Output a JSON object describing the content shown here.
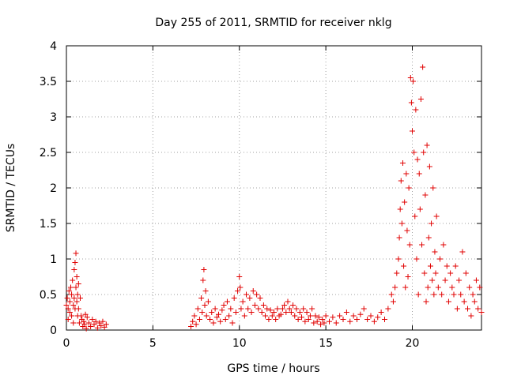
{
  "chart_data": {
    "type": "scatter",
    "title": "Day 255 of 2011, SRMTID for receiver nklg",
    "xlabel": "GPS time / hours",
    "ylabel": "SRMTID / TECUs",
    "xlim": [
      0,
      24
    ],
    "ylim": [
      0,
      4
    ],
    "x_ticks": [
      0,
      5,
      10,
      15,
      20
    ],
    "x_tick_labels": [
      "0",
      "5",
      "10",
      "15",
      "20"
    ],
    "y_ticks": [
      0,
      0.5,
      1,
      1.5,
      2,
      2.5,
      3,
      3.5,
      4
    ],
    "y_tick_labels": [
      "0",
      "0.5",
      "1",
      "1.5",
      "2",
      "2.5",
      "3",
      "3.5",
      "4"
    ],
    "grid": true,
    "marker": "+",
    "color": "#e00000",
    "series": [
      {
        "name": "SRMTID",
        "points": [
          [
            0.0,
            0.35
          ],
          [
            0.05,
            0.45
          ],
          [
            0.1,
            0.3
          ],
          [
            0.1,
            0.15
          ],
          [
            0.15,
            0.55
          ],
          [
            0.2,
            0.25
          ],
          [
            0.2,
            0.4
          ],
          [
            0.25,
            0.6
          ],
          [
            0.3,
            0.2
          ],
          [
            0.3,
            0.5
          ],
          [
            0.35,
            0.7
          ],
          [
            0.4,
            0.35
          ],
          [
            0.4,
            0.1
          ],
          [
            0.45,
            0.85
          ],
          [
            0.45,
            0.45
          ],
          [
            0.5,
            0.95
          ],
          [
            0.5,
            0.3
          ],
          [
            0.55,
            1.08
          ],
          [
            0.55,
            0.6
          ],
          [
            0.6,
            0.4
          ],
          [
            0.6,
            0.75
          ],
          [
            0.65,
            0.2
          ],
          [
            0.65,
            0.5
          ],
          [
            0.7,
            0.3
          ],
          [
            0.7,
            0.65
          ],
          [
            0.75,
            0.1
          ],
          [
            0.8,
            0.45
          ],
          [
            0.85,
            0.2
          ],
          [
            0.9,
            0.15
          ],
          [
            0.95,
            0.05
          ],
          [
            1.0,
            0.12
          ],
          [
            1.05,
            0.08
          ],
          [
            1.1,
            0.22
          ],
          [
            1.15,
            0.02
          ],
          [
            1.2,
            0.18
          ],
          [
            1.3,
            0.1
          ],
          [
            1.4,
            0.05
          ],
          [
            1.5,
            0.15
          ],
          [
            1.6,
            0.08
          ],
          [
            1.7,
            0.12
          ],
          [
            1.8,
            0.03
          ],
          [
            1.9,
            0.1
          ],
          [
            2.0,
            0.06
          ],
          [
            2.1,
            0.12
          ],
          [
            2.2,
            0.04
          ],
          [
            2.3,
            0.08
          ],
          [
            7.2,
            0.05
          ],
          [
            7.3,
            0.12
          ],
          [
            7.4,
            0.2
          ],
          [
            7.5,
            0.08
          ],
          [
            7.6,
            0.3
          ],
          [
            7.7,
            0.15
          ],
          [
            7.8,
            0.45
          ],
          [
            7.85,
            0.25
          ],
          [
            7.9,
            0.7
          ],
          [
            7.95,
            0.85
          ],
          [
            8.0,
            0.35
          ],
          [
            8.05,
            0.55
          ],
          [
            8.1,
            0.2
          ],
          [
            8.2,
            0.4
          ],
          [
            8.3,
            0.15
          ],
          [
            8.4,
            0.25
          ],
          [
            8.5,
            0.1
          ],
          [
            8.6,
            0.3
          ],
          [
            8.7,
            0.18
          ],
          [
            8.8,
            0.22
          ],
          [
            8.9,
            0.12
          ],
          [
            9.0,
            0.28
          ],
          [
            9.1,
            0.35
          ],
          [
            9.2,
            0.15
          ],
          [
            9.3,
            0.4
          ],
          [
            9.4,
            0.2
          ],
          [
            9.5,
            0.3
          ],
          [
            9.6,
            0.1
          ],
          [
            9.7,
            0.45
          ],
          [
            9.8,
            0.25
          ],
          [
            9.9,
            0.55
          ],
          [
            10.0,
            0.75
          ],
          [
            10.05,
            0.6
          ],
          [
            10.1,
            0.3
          ],
          [
            10.2,
            0.4
          ],
          [
            10.3,
            0.2
          ],
          [
            10.4,
            0.5
          ],
          [
            10.5,
            0.3
          ],
          [
            10.6,
            0.45
          ],
          [
            10.7,
            0.25
          ],
          [
            10.8,
            0.55
          ],
          [
            10.9,
            0.35
          ],
          [
            11.0,
            0.5
          ],
          [
            11.1,
            0.3
          ],
          [
            11.2,
            0.45
          ],
          [
            11.3,
            0.25
          ],
          [
            11.4,
            0.35
          ],
          [
            11.5,
            0.2
          ],
          [
            11.6,
            0.3
          ],
          [
            11.7,
            0.15
          ],
          [
            11.8,
            0.28
          ],
          [
            11.9,
            0.2
          ],
          [
            12.0,
            0.25
          ],
          [
            12.1,
            0.15
          ],
          [
            12.2,
            0.3
          ],
          [
            12.3,
            0.2
          ],
          [
            12.4,
            0.22
          ],
          [
            12.5,
            0.3
          ],
          [
            12.6,
            0.35
          ],
          [
            12.7,
            0.25
          ],
          [
            12.8,
            0.4
          ],
          [
            12.9,
            0.3
          ],
          [
            13.0,
            0.25
          ],
          [
            13.1,
            0.35
          ],
          [
            13.2,
            0.2
          ],
          [
            13.3,
            0.3
          ],
          [
            13.4,
            0.15
          ],
          [
            13.5,
            0.25
          ],
          [
            13.6,
            0.18
          ],
          [
            13.7,
            0.3
          ],
          [
            13.8,
            0.12
          ],
          [
            13.9,
            0.25
          ],
          [
            14.0,
            0.15
          ],
          [
            14.1,
            0.2
          ],
          [
            14.2,
            0.3
          ],
          [
            14.3,
            0.1
          ],
          [
            14.4,
            0.2
          ],
          [
            14.5,
            0.12
          ],
          [
            14.6,
            0.18
          ],
          [
            14.7,
            0.08
          ],
          [
            14.8,
            0.15
          ],
          [
            14.9,
            0.1
          ],
          [
            15.0,
            0.2
          ],
          [
            15.2,
            0.12
          ],
          [
            15.4,
            0.18
          ],
          [
            15.6,
            0.1
          ],
          [
            15.8,
            0.2
          ],
          [
            16.0,
            0.15
          ],
          [
            16.2,
            0.25
          ],
          [
            16.4,
            0.12
          ],
          [
            16.6,
            0.2
          ],
          [
            16.8,
            0.15
          ],
          [
            17.0,
            0.22
          ],
          [
            17.2,
            0.3
          ],
          [
            17.4,
            0.15
          ],
          [
            17.6,
            0.2
          ],
          [
            17.8,
            0.12
          ],
          [
            18.0,
            0.18
          ],
          [
            18.2,
            0.25
          ],
          [
            18.4,
            0.15
          ],
          [
            18.6,
            0.3
          ],
          [
            18.8,
            0.5
          ],
          [
            18.9,
            0.4
          ],
          [
            19.0,
            0.6
          ],
          [
            19.1,
            0.8
          ],
          [
            19.2,
            1.0
          ],
          [
            19.25,
            1.3
          ],
          [
            19.3,
            1.7
          ],
          [
            19.35,
            2.1
          ],
          [
            19.4,
            1.5
          ],
          [
            19.45,
            2.35
          ],
          [
            19.5,
            0.9
          ],
          [
            19.55,
            1.8
          ],
          [
            19.6,
            0.6
          ],
          [
            19.65,
            2.2
          ],
          [
            19.7,
            1.4
          ],
          [
            19.75,
            0.75
          ],
          [
            19.8,
            2.0
          ],
          [
            19.85,
            1.2
          ],
          [
            19.9,
            3.55
          ],
          [
            19.95,
            3.2
          ],
          [
            20.0,
            2.8
          ],
          [
            20.05,
            3.5
          ],
          [
            20.1,
            2.5
          ],
          [
            20.15,
            1.6
          ],
          [
            20.2,
            3.1
          ],
          [
            20.25,
            1.0
          ],
          [
            20.3,
            2.4
          ],
          [
            20.35,
            0.5
          ],
          [
            20.4,
            2.2
          ],
          [
            20.45,
            1.7
          ],
          [
            20.5,
            3.25
          ],
          [
            20.55,
            1.2
          ],
          [
            20.6,
            3.7
          ],
          [
            20.65,
            2.5
          ],
          [
            20.7,
            0.8
          ],
          [
            20.75,
            1.9
          ],
          [
            20.8,
            0.4
          ],
          [
            20.85,
            2.6
          ],
          [
            20.9,
            0.6
          ],
          [
            20.95,
            1.3
          ],
          [
            21.0,
            2.3
          ],
          [
            21.05,
            0.9
          ],
          [
            21.1,
            1.5
          ],
          [
            21.15,
            0.7
          ],
          [
            21.2,
            2.0
          ],
          [
            21.25,
            0.5
          ],
          [
            21.3,
            1.1
          ],
          [
            21.35,
            0.8
          ],
          [
            21.4,
            1.6
          ],
          [
            21.5,
            0.6
          ],
          [
            21.6,
            1.0
          ],
          [
            21.7,
            0.5
          ],
          [
            21.8,
            1.2
          ],
          [
            21.9,
            0.7
          ],
          [
            22.0,
            0.9
          ],
          [
            22.1,
            0.4
          ],
          [
            22.2,
            0.8
          ],
          [
            22.3,
            0.6
          ],
          [
            22.4,
            0.5
          ],
          [
            22.5,
            0.9
          ],
          [
            22.6,
            0.3
          ],
          [
            22.7,
            0.7
          ],
          [
            22.8,
            0.5
          ],
          [
            22.9,
            1.1
          ],
          [
            23.0,
            0.4
          ],
          [
            23.1,
            0.8
          ],
          [
            23.2,
            0.3
          ],
          [
            23.3,
            0.6
          ],
          [
            23.4,
            0.2
          ],
          [
            23.5,
            0.5
          ],
          [
            23.6,
            0.4
          ],
          [
            23.7,
            0.7
          ],
          [
            23.8,
            0.3
          ],
          [
            23.9,
            0.6
          ],
          [
            24.0,
            0.25
          ]
        ]
      }
    ]
  }
}
